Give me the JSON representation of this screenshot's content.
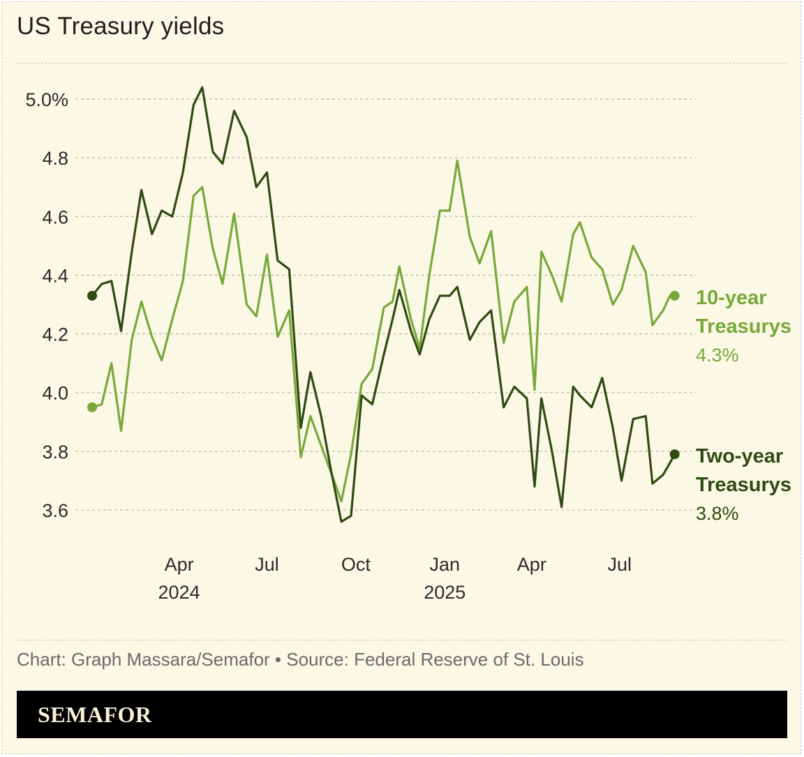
{
  "title": "US Treasury yields",
  "credit": "Chart: Graph Massara/Semafor • Source: Federal Reserve of St. Louis",
  "brand": "SEMAFOR",
  "colors": {
    "background": "#fbf8e6",
    "ten_year": "#78a83a",
    "two_year": "#2f4a12",
    "grid": "#bdbba6"
  },
  "chart_data": {
    "type": "line",
    "title": "US Treasury yields",
    "ylim": [
      3.5,
      5.0
    ],
    "y_ticks": [
      {
        "value": 5.0,
        "label": "5.0%"
      },
      {
        "value": 4.8,
        "label": "4.8"
      },
      {
        "value": 4.6,
        "label": "4.6"
      },
      {
        "value": 4.4,
        "label": "4.4"
      },
      {
        "value": 4.2,
        "label": "4.2"
      },
      {
        "value": 4.0,
        "label": "4.0"
      },
      {
        "value": 3.8,
        "label": "3.8"
      },
      {
        "value": 3.6,
        "label": "3.6"
      }
    ],
    "x_range": [
      "2024-01-02",
      "2025-09-02"
    ],
    "x_ticks": [
      {
        "date": "2024-04-01",
        "label": "Apr",
        "year": "2024"
      },
      {
        "date": "2024-07-01",
        "label": "Jul",
        "year": ""
      },
      {
        "date": "2024-10-01",
        "label": "Oct",
        "year": ""
      },
      {
        "date": "2025-01-01",
        "label": "Jan",
        "year": "2025"
      },
      {
        "date": "2025-04-01",
        "label": "Apr",
        "year": ""
      },
      {
        "date": "2025-07-01",
        "label": "Jul",
        "year": ""
      }
    ],
    "grid": true,
    "legend": "direct-labels-right",
    "series": [
      {
        "name": "10-year Treasurys",
        "line1": "10-year",
        "line2": "Treasurys",
        "last_label": "4.3%",
        "color": "#78a83a",
        "points": [
          [
            "2024-01-02",
            3.95
          ],
          [
            "2024-01-12",
            3.96
          ],
          [
            "2024-01-22",
            4.1
          ],
          [
            "2024-02-01",
            3.87
          ],
          [
            "2024-02-12",
            4.18
          ],
          [
            "2024-02-22",
            4.31
          ],
          [
            "2024-03-04",
            4.19
          ],
          [
            "2024-03-14",
            4.11
          ],
          [
            "2024-03-25",
            4.25
          ],
          [
            "2024-04-05",
            4.38
          ],
          [
            "2024-04-16",
            4.67
          ],
          [
            "2024-04-25",
            4.7
          ],
          [
            "2024-05-06",
            4.49
          ],
          [
            "2024-05-16",
            4.37
          ],
          [
            "2024-05-28",
            4.61
          ],
          [
            "2024-06-10",
            4.3
          ],
          [
            "2024-06-20",
            4.26
          ],
          [
            "2024-07-01",
            4.47
          ],
          [
            "2024-07-12",
            4.19
          ],
          [
            "2024-07-24",
            4.28
          ],
          [
            "2024-08-05",
            3.78
          ],
          [
            "2024-08-15",
            3.92
          ],
          [
            "2024-08-26",
            3.82
          ],
          [
            "2024-09-05",
            3.73
          ],
          [
            "2024-09-16",
            3.63
          ],
          [
            "2024-09-26",
            3.79
          ],
          [
            "2024-10-07",
            4.03
          ],
          [
            "2024-10-18",
            4.08
          ],
          [
            "2024-10-30",
            4.29
          ],
          [
            "2024-11-08",
            4.31
          ],
          [
            "2024-11-15",
            4.43
          ],
          [
            "2024-11-27",
            4.25
          ],
          [
            "2024-12-06",
            4.15
          ],
          [
            "2024-12-16",
            4.4
          ],
          [
            "2024-12-27",
            4.62
          ],
          [
            "2025-01-06",
            4.62
          ],
          [
            "2025-01-14",
            4.79
          ],
          [
            "2025-01-27",
            4.53
          ],
          [
            "2025-02-06",
            4.44
          ],
          [
            "2025-02-18",
            4.55
          ],
          [
            "2025-03-03",
            4.17
          ],
          [
            "2025-03-14",
            4.31
          ],
          [
            "2025-03-27",
            4.36
          ],
          [
            "2025-04-04",
            4.01
          ],
          [
            "2025-04-11",
            4.48
          ],
          [
            "2025-04-22",
            4.4
          ],
          [
            "2025-05-02",
            4.31
          ],
          [
            "2025-05-14",
            4.54
          ],
          [
            "2025-05-21",
            4.58
          ],
          [
            "2025-06-02",
            4.46
          ],
          [
            "2025-06-13",
            4.42
          ],
          [
            "2025-06-24",
            4.3
          ],
          [
            "2025-07-03",
            4.35
          ],
          [
            "2025-07-15",
            4.5
          ],
          [
            "2025-07-28",
            4.41
          ],
          [
            "2025-08-04",
            4.23
          ],
          [
            "2025-08-15",
            4.28
          ],
          [
            "2025-08-22",
            4.33
          ],
          [
            "2025-08-27",
            4.33
          ]
        ]
      },
      {
        "name": "Two-year Treasurys",
        "line1": "Two-year",
        "line2": "Treasurys",
        "last_label": "3.8%",
        "color": "#2f4a12",
        "points": [
          [
            "2024-01-02",
            4.33
          ],
          [
            "2024-01-12",
            4.37
          ],
          [
            "2024-01-22",
            4.38
          ],
          [
            "2024-02-01",
            4.21
          ],
          [
            "2024-02-12",
            4.48
          ],
          [
            "2024-02-22",
            4.69
          ],
          [
            "2024-03-04",
            4.54
          ],
          [
            "2024-03-14",
            4.62
          ],
          [
            "2024-03-25",
            4.6
          ],
          [
            "2024-04-05",
            4.75
          ],
          [
            "2024-04-16",
            4.98
          ],
          [
            "2024-04-25",
            5.04
          ],
          [
            "2024-05-06",
            4.82
          ],
          [
            "2024-05-16",
            4.78
          ],
          [
            "2024-05-28",
            4.96
          ],
          [
            "2024-06-10",
            4.87
          ],
          [
            "2024-06-20",
            4.7
          ],
          [
            "2024-07-01",
            4.75
          ],
          [
            "2024-07-12",
            4.45
          ],
          [
            "2024-07-24",
            4.42
          ],
          [
            "2024-08-05",
            3.88
          ],
          [
            "2024-08-15",
            4.07
          ],
          [
            "2024-08-26",
            3.92
          ],
          [
            "2024-09-05",
            3.74
          ],
          [
            "2024-09-16",
            3.56
          ],
          [
            "2024-09-26",
            3.58
          ],
          [
            "2024-10-07",
            3.99
          ],
          [
            "2024-10-18",
            3.96
          ],
          [
            "2024-10-30",
            4.13
          ],
          [
            "2024-11-08",
            4.25
          ],
          [
            "2024-11-15",
            4.35
          ],
          [
            "2024-11-27",
            4.21
          ],
          [
            "2024-12-06",
            4.13
          ],
          [
            "2024-12-16",
            4.25
          ],
          [
            "2024-12-27",
            4.33
          ],
          [
            "2025-01-06",
            4.33
          ],
          [
            "2025-01-14",
            4.36
          ],
          [
            "2025-01-27",
            4.18
          ],
          [
            "2025-02-06",
            4.24
          ],
          [
            "2025-02-18",
            4.28
          ],
          [
            "2025-03-03",
            3.95
          ],
          [
            "2025-03-14",
            4.02
          ],
          [
            "2025-03-27",
            3.98
          ],
          [
            "2025-04-04",
            3.68
          ],
          [
            "2025-04-11",
            3.98
          ],
          [
            "2025-04-22",
            3.8
          ],
          [
            "2025-05-02",
            3.61
          ],
          [
            "2025-05-14",
            4.02
          ],
          [
            "2025-05-21",
            3.99
          ],
          [
            "2025-06-02",
            3.95
          ],
          [
            "2025-06-13",
            4.05
          ],
          [
            "2025-06-24",
            3.88
          ],
          [
            "2025-07-03",
            3.7
          ],
          [
            "2025-07-15",
            3.91
          ],
          [
            "2025-07-28",
            3.92
          ],
          [
            "2025-08-04",
            3.69
          ],
          [
            "2025-08-15",
            3.72
          ],
          [
            "2025-08-22",
            3.76
          ],
          [
            "2025-08-27",
            3.79
          ]
        ]
      }
    ]
  }
}
